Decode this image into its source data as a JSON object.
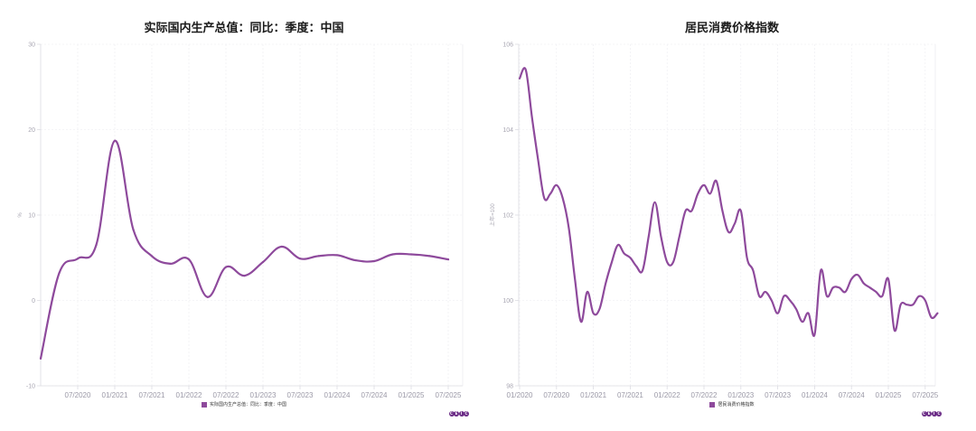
{
  "colors": {
    "line": "#8e4a9c",
    "grid": "#ececf0",
    "axis": "#dcdce2",
    "logo": "#6b2c86"
  },
  "brand": {
    "logo_letters": [
      "C",
      "E",
      "I",
      "C"
    ]
  },
  "chart_data": [
    {
      "type": "line",
      "title": "实际国内生产总值：同比：季度：中国",
      "xlabel": "",
      "ylabel": "%",
      "ylim": [
        -10,
        30
      ],
      "yticks": [
        -10,
        0,
        10,
        20,
        30
      ],
      "grid": true,
      "legend": {
        "entries": [
          "实际国内生产总值：同比：季度：中国"
        ],
        "position": "bottom"
      },
      "x_tick_labels": [
        "07/2020",
        "01/2021",
        "07/2021",
        "01/2022",
        "07/2022",
        "01/2023",
        "07/2023",
        "01/2024",
        "07/2024",
        "01/2025",
        "07/2025"
      ],
      "x": [
        "2020-Q1",
        "2020-Q2",
        "2020-Q3",
        "2020-Q4",
        "2021-Q1",
        "2021-Q2",
        "2021-Q3",
        "2021-Q4",
        "2022-Q1",
        "2022-Q2",
        "2022-Q3",
        "2022-Q4",
        "2023-Q1",
        "2023-Q2",
        "2023-Q3",
        "2023-Q4",
        "2024-Q1",
        "2024-Q2",
        "2024-Q3",
        "2024-Q4",
        "2025-Q1",
        "2025-Q2",
        "2025-Q3"
      ],
      "series": [
        {
          "name": "实际国内生产总值：同比：季度：中国",
          "values": [
            -6.8,
            3.2,
            4.9,
            6.5,
            18.7,
            8.3,
            5.2,
            4.3,
            4.8,
            0.4,
            3.9,
            2.9,
            4.5,
            6.3,
            4.9,
            5.2,
            5.3,
            4.7,
            4.6,
            5.4,
            5.4,
            5.2,
            4.8
          ]
        }
      ]
    },
    {
      "type": "line",
      "title": "居民消费价格指数",
      "xlabel": "",
      "ylabel": "上年=100",
      "ylim": [
        98,
        106
      ],
      "yticks": [
        98,
        100,
        102,
        104,
        106
      ],
      "grid": true,
      "legend": {
        "entries": [
          "居民消费价格指数"
        ],
        "position": "bottom"
      },
      "x_tick_labels": [
        "01/2020",
        "07/2020",
        "01/2021",
        "07/2021",
        "01/2022",
        "07/2022",
        "01/2023",
        "07/2023",
        "01/2024",
        "07/2024",
        "01/2025",
        "07/2025"
      ],
      "x_start": "2020-01",
      "x_frequency": "monthly",
      "series": [
        {
          "name": "居民消费价格指数",
          "values": [
            105.2,
            105.4,
            104.3,
            103.3,
            102.4,
            102.5,
            102.7,
            102.4,
            101.7,
            100.5,
            99.5,
            100.2,
            99.7,
            99.8,
            100.4,
            100.9,
            101.3,
            101.1,
            101.0,
            100.8,
            100.7,
            101.5,
            102.3,
            101.5,
            100.9,
            100.9,
            101.5,
            102.1,
            102.1,
            102.5,
            102.7,
            102.5,
            102.8,
            102.1,
            101.6,
            101.8,
            102.1,
            101.0,
            100.7,
            100.1,
            100.2,
            100.0,
            99.7,
            100.1,
            100.0,
            99.8,
            99.5,
            99.7,
            99.2,
            100.7,
            100.1,
            100.3,
            100.3,
            100.2,
            100.5,
            100.6,
            100.4,
            100.3,
            100.2,
            100.1,
            100.5,
            99.3,
            99.9,
            99.9,
            99.9,
            100.1,
            100.0,
            99.6,
            99.7
          ]
        }
      ]
    }
  ]
}
